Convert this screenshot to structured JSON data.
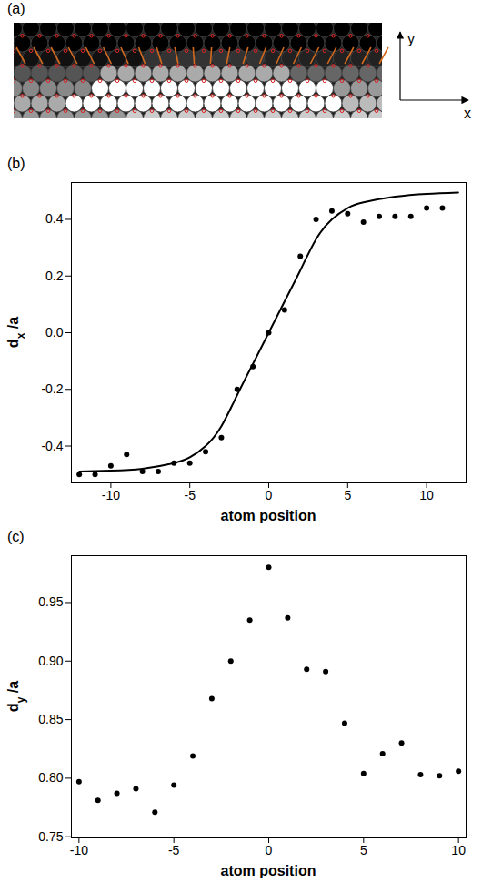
{
  "chart_data": [
    {
      "type": "image",
      "panel": "(a)",
      "axis_labels": {
        "x": "x",
        "y": "y"
      }
    },
    {
      "type": "scatter",
      "panel": "(b)",
      "x_label": "atom position",
      "y_label": "dx /a",
      "xlim": [
        -12.5,
        12.5
      ],
      "xticks": [
        -10,
        -5,
        0,
        5,
        10
      ],
      "ylim": [
        -0.53,
        0.53
      ],
      "yticks": [
        -0.4,
        -0.2,
        {
          "value": 0,
          "label": "0.0"
        },
        0.2,
        0.4
      ],
      "series": [
        {
          "type": "scatter",
          "marker": "circle",
          "color": "#000000",
          "x": [
            -12,
            -11,
            -10,
            -9,
            -8,
            -7,
            -6,
            -5,
            -4,
            -3,
            -2,
            -1,
            0,
            1,
            2,
            3,
            4,
            5,
            6,
            7,
            8,
            9,
            10,
            11
          ],
          "values": [
            -0.5,
            -0.5,
            -0.47,
            -0.43,
            -0.49,
            -0.49,
            -0.46,
            -0.46,
            -0.42,
            -0.37,
            -0.2,
            -0.12,
            0.0,
            0.08,
            0.27,
            0.4,
            0.43,
            0.42,
            0.39,
            0.41,
            0.41,
            0.41,
            0.44,
            0.44
          ]
        },
        {
          "type": "line",
          "line_style": "solid",
          "color": "#000000",
          "x": [
            -12,
            -10,
            -8,
            -6,
            -5,
            -4,
            -3,
            -2,
            -1,
            0,
            1,
            2,
            3,
            4,
            5,
            6,
            8,
            10,
            12
          ],
          "values": [
            -0.49,
            -0.487,
            -0.48,
            -0.46,
            -0.44,
            -0.4,
            -0.33,
            -0.22,
            -0.11,
            0.0,
            0.11,
            0.22,
            0.33,
            0.4,
            0.44,
            0.46,
            0.48,
            0.49,
            0.495
          ]
        }
      ]
    },
    {
      "type": "scatter",
      "panel": "(c)",
      "x_label": "atom position",
      "y_label": "dy /a",
      "xlim": [
        -10.4,
        10.4
      ],
      "xticks": [
        -10,
        -5,
        0,
        5,
        10
      ],
      "ylim": [
        0.749,
        0.99
      ],
      "yticks": [
        0.75,
        {
          "value": 0.8,
          "label": "0.80"
        },
        0.85,
        {
          "value": 0.9,
          "label": "0.90"
        },
        0.95
      ],
      "series": [
        {
          "type": "scatter",
          "marker": "circle",
          "color": "#000000",
          "x": [
            -10,
            -9,
            -8,
            -7,
            -6,
            -5,
            -4,
            -3,
            -2,
            -1,
            0,
            1,
            2,
            3,
            4,
            5,
            6,
            7,
            8,
            9,
            10
          ],
          "values": [
            0.797,
            0.781,
            0.787,
            0.791,
            0.771,
            0.794,
            0.819,
            0.868,
            0.9,
            0.935,
            0.98,
            0.937,
            0.893,
            0.891,
            0.847,
            0.804,
            0.821,
            0.83,
            0.803,
            0.802,
            0.806
          ]
        }
      ]
    }
  ]
}
